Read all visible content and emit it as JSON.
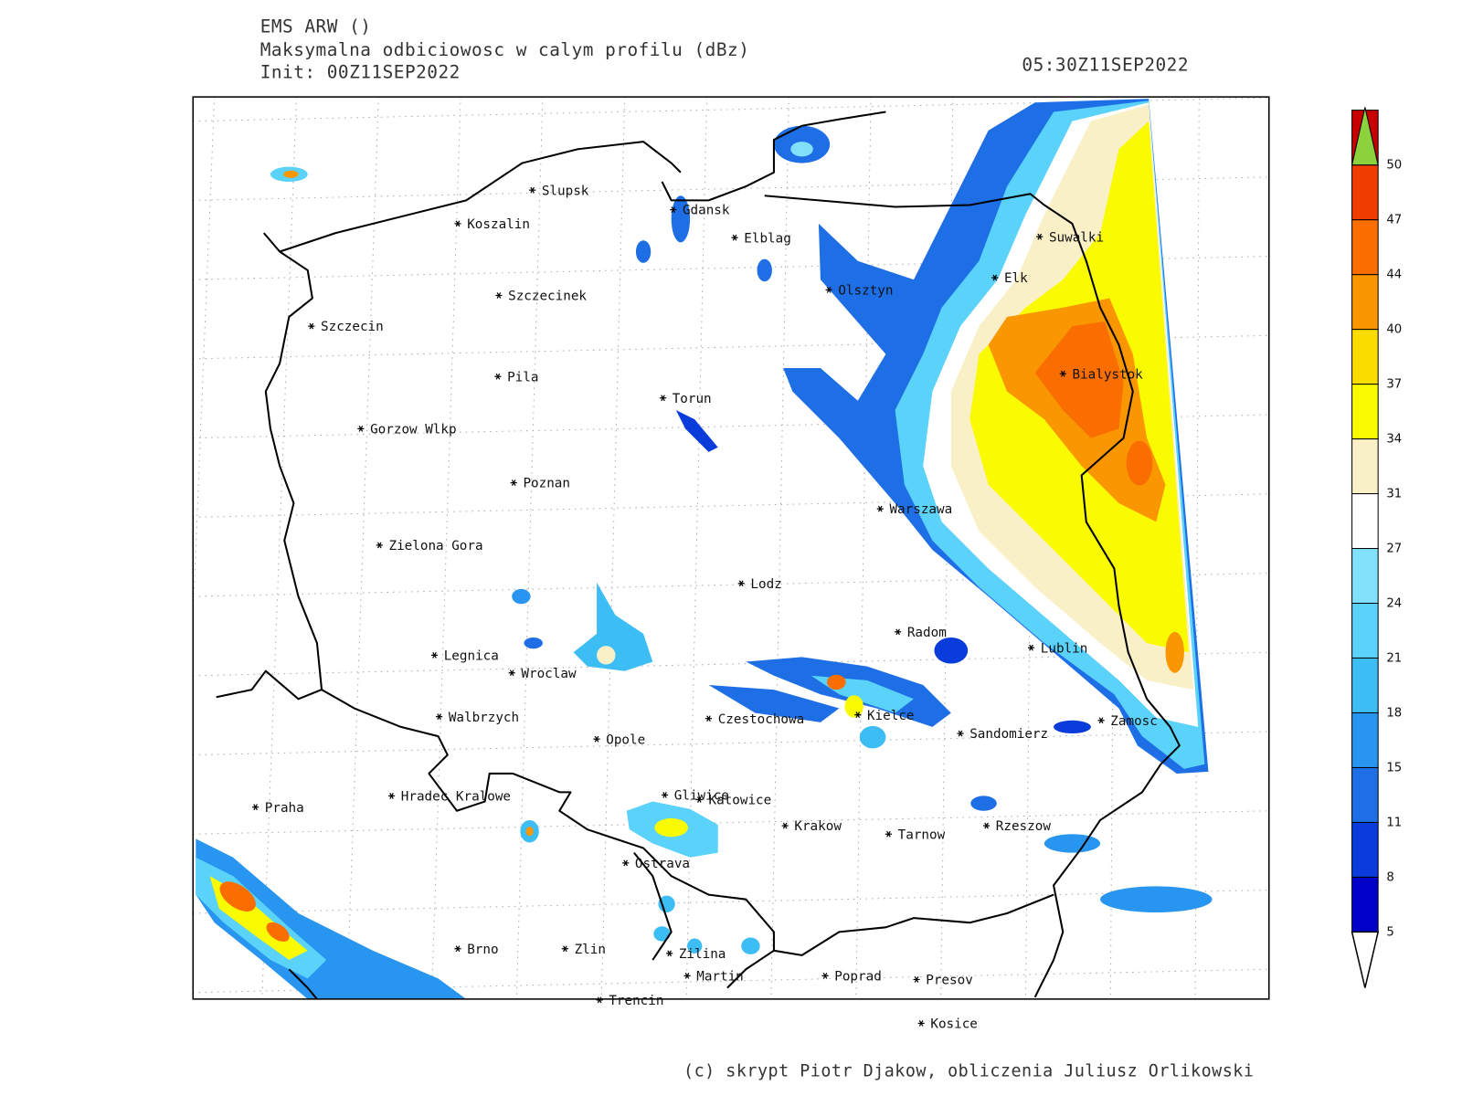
{
  "header": {
    "model": "EMS ARW ()",
    "field": "Maksymalna odbiciowosc w calym profilu (dBz)",
    "init": "Init: 00Z11SEP2022",
    "valid": "05:30Z11SEP2022"
  },
  "cities": [
    "Slupsk",
    "Koszalin",
    "Gdansk",
    "Elblag",
    "Suwalki",
    "Elk",
    "Olsztyn",
    "Szczecinek",
    "Szczecin",
    "Bialystok",
    "Pila",
    "Torun",
    "Gorzow Wlkp",
    "Poznan",
    "Warszawa",
    "Zielona Gora",
    "Lodz",
    "Radom",
    "Lublin",
    "Legnica",
    "Wroclaw",
    "Czestochowa",
    "Kielce",
    "Walbrzych",
    "Zamosc",
    "Sandomierz",
    "Opole",
    "Gliwice",
    "Katowice",
    "Praha",
    "Hradec Kralowe",
    "Krakow",
    "Rzeszow",
    "Tarnow",
    "Ostrava",
    "Brno",
    "Zlin",
    "Zilina",
    "Martin",
    "Poprad",
    "Presov",
    "Trencin",
    "Kosice"
  ],
  "colorbar": {
    "levels": [
      5,
      8,
      11,
      15,
      18,
      21,
      24,
      27,
      31,
      34,
      37,
      40,
      44,
      47,
      50
    ],
    "colors": [
      "#0000c8",
      "#0a3cdc",
      "#1e6ee6",
      "#2896f0",
      "#3cbef5",
      "#5ad2fa",
      "#82e1fa",
      "#ffffff",
      "#faf0c8",
      "#fafa00",
      "#fadc00",
      "#fa9600",
      "#fa6e00",
      "#f03c00",
      "#c80000"
    ],
    "under": "#ffffff",
    "over": "#8cd23c"
  },
  "footer": "(c) skrypt Piotr Djakow, obliczenia Juliusz Orlikowski"
}
